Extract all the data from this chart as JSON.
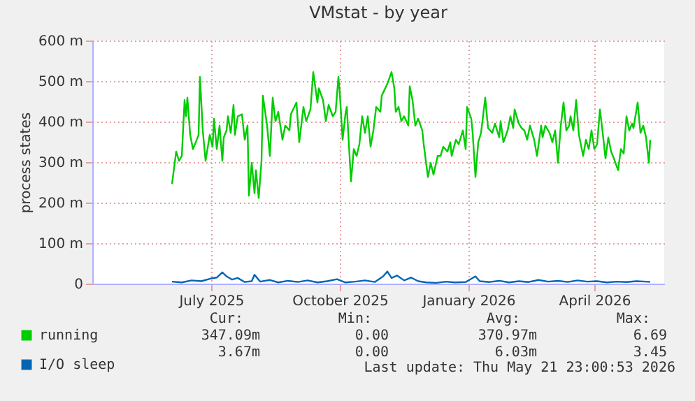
{
  "chart_data": {
    "type": "line",
    "title": "VMstat - by year",
    "ylabel": "process states",
    "xlim": [
      "2025-04-07",
      "2026-05-21"
    ],
    "xticks": [
      {
        "value": "2025-07-01",
        "label": "July 2025"
      },
      {
        "value": "2025-10-01",
        "label": "October 2025"
      },
      {
        "value": "2026-01-01",
        "label": "January 2026"
      },
      {
        "value": "2026-04-01",
        "label": "April 2026"
      }
    ],
    "ylim": [
      0,
      600
    ],
    "yticks": [
      0,
      {
        "value": 100,
        "label": "100 m"
      },
      {
        "value": 200,
        "label": "200 m"
      },
      {
        "value": 300,
        "label": "300 m"
      },
      {
        "value": 400,
        "label": "400 m"
      },
      {
        "value": 500,
        "label": "500 m"
      },
      {
        "value": 600,
        "label": "600 m"
      }
    ],
    "grid": true,
    "legend": "bottom",
    "series": [
      {
        "name": "running",
        "color": "#00cc00",
        "x": [
          "2025-06-03",
          "2025-06-06",
          "2025-06-08",
          "2025-06-10",
          "2025-06-12",
          "2025-06-13",
          "2025-06-14",
          "2025-06-16",
          "2025-06-18",
          "2025-06-20",
          "2025-06-22",
          "2025-06-23",
          "2025-06-25",
          "2025-06-27",
          "2025-06-30",
          "2025-07-02",
          "2025-07-03",
          "2025-07-05",
          "2025-07-07",
          "2025-07-09",
          "2025-07-10",
          "2025-07-12",
          "2025-07-13",
          "2025-07-15",
          "2025-07-17",
          "2025-07-18",
          "2025-07-20",
          "2025-07-23",
          "2025-07-25",
          "2025-07-27",
          "2025-07-28",
          "2025-07-30",
          "2025-08-01",
          "2025-08-02",
          "2025-08-04",
          "2025-08-06",
          "2025-08-07",
          "2025-08-10",
          "2025-08-12",
          "2025-08-14",
          "2025-08-16",
          "2025-08-18",
          "2025-08-21",
          "2025-08-23",
          "2025-08-26",
          "2025-08-27",
          "2025-08-31",
          "2025-09-02",
          "2025-09-05",
          "2025-09-07",
          "2025-09-10",
          "2025-09-12",
          "2025-09-15",
          "2025-09-16",
          "2025-09-19",
          "2025-09-21",
          "2025-09-23",
          "2025-09-26",
          "2025-09-28",
          "2025-09-30",
          "2025-10-01",
          "2025-10-03",
          "2025-10-05",
          "2025-10-06",
          "2025-10-09",
          "2025-10-11",
          "2025-10-13",
          "2025-10-15",
          "2025-10-17",
          "2025-10-19",
          "2025-10-21",
          "2025-10-23",
          "2025-10-25",
          "2025-10-27",
          "2025-10-30",
          "2025-10-31",
          "2025-11-04",
          "2025-11-07",
          "2025-11-09",
          "2025-11-10",
          "2025-11-12",
          "2025-11-14",
          "2025-11-16",
          "2025-11-19",
          "2025-11-20",
          "2025-11-22",
          "2025-11-24",
          "2025-11-26",
          "2025-11-29",
          "2025-11-30",
          "2025-12-03",
          "2025-12-05",
          "2025-12-07",
          "2025-12-10",
          "2025-12-12",
          "2025-12-14",
          "2025-12-17",
          "2025-12-19",
          "2025-12-20",
          "2025-12-23",
          "2025-12-25",
          "2025-12-28",
          "2025-12-30",
          "2025-12-31",
          "2026-01-03",
          "2026-01-04",
          "2026-01-06",
          "2026-01-08",
          "2026-01-10",
          "2026-01-13",
          "2026-01-15",
          "2026-01-18",
          "2026-01-20",
          "2026-01-23",
          "2026-01-24",
          "2026-01-26",
          "2026-01-29",
          "2026-01-31",
          "2026-02-02",
          "2026-02-03",
          "2026-02-06",
          "2026-02-08",
          "2026-02-10",
          "2026-02-12",
          "2026-02-14",
          "2026-02-17",
          "2026-02-19",
          "2026-02-22",
          "2026-02-23",
          "2026-02-25",
          "2026-02-28",
          "2026-03-02",
          "2026-03-04",
          "2026-03-06",
          "2026-03-08",
          "2026-03-10",
          "2026-03-12",
          "2026-03-14",
          "2026-03-15",
          "2026-03-17",
          "2026-03-19",
          "2026-03-21",
          "2026-03-24",
          "2026-03-26",
          "2026-03-28",
          "2026-03-30",
          "2026-04-01",
          "2026-04-03",
          "2026-04-05",
          "2026-04-07",
          "2026-04-09",
          "2026-04-11",
          "2026-04-13",
          "2026-04-15",
          "2026-04-18",
          "2026-04-20",
          "2026-04-22",
          "2026-04-24",
          "2026-04-26",
          "2026-04-28",
          "2026-04-29",
          "2026-05-02",
          "2026-05-04",
          "2026-05-06",
          "2026-05-08",
          "2026-05-10",
          "2026-05-11"
        ],
        "values": [
          246,
          326,
          303,
          315,
          453,
          413,
          459,
          367,
          332,
          349,
          367,
          510,
          378,
          303,
          367,
          338,
          407,
          332,
          390,
          303,
          361,
          378,
          413,
          372,
          441,
          367,
          413,
          418,
          355,
          390,
          217,
          298,
          223,
          280,
          211,
          303,
          464,
          390,
          315,
          459,
          401,
          424,
          355,
          390,
          378,
          418,
          447,
          349,
          436,
          401,
          430,
          522,
          447,
          482,
          453,
          401,
          441,
          413,
          424,
          510,
          470,
          355,
          418,
          436,
          252,
          332,
          315,
          344,
          413,
          372,
          413,
          338,
          378,
          436,
          424,
          464,
          493,
          522,
          482,
          424,
          436,
          401,
          413,
          390,
          487,
          453,
          390,
          407,
          378,
          344,
          263,
          298,
          269,
          315,
          315,
          338,
          326,
          349,
          315,
          355,
          344,
          378,
          332,
          436,
          407,
          372,
          263,
          349,
          372,
          459,
          384,
          372,
          395,
          361,
          401,
          349,
          378,
          413,
          384,
          430,
          395,
          384,
          378,
          355,
          390,
          355,
          315,
          390,
          361,
          390,
          372,
          349,
          378,
          298,
          390,
          447,
          378,
          390,
          413,
          378,
          453,
          367,
          315,
          355,
          332,
          378,
          332,
          344,
          430,
          372,
          309,
          361,
          326,
          309,
          280,
          332,
          321,
          413,
          378,
          395,
          384,
          447,
          372,
          390,
          361,
          298,
          355
        ]
      },
      {
        "name": "I/O sleep",
        "color": "#0066b3",
        "x": [
          "2025-06-03",
          "2025-06-10",
          "2025-06-17",
          "2025-06-24",
          "2025-06-30",
          "2025-07-05",
          "2025-07-09",
          "2025-07-12",
          "2025-07-16",
          "2025-07-20",
          "2025-07-25",
          "2025-07-30",
          "2025-08-01",
          "2025-08-05",
          "2025-08-12",
          "2025-08-18",
          "2025-08-25",
          "2025-09-01",
          "2025-09-08",
          "2025-09-15",
          "2025-09-22",
          "2025-09-29",
          "2025-10-05",
          "2025-10-12",
          "2025-10-19",
          "2025-10-26",
          "2025-11-01",
          "2025-11-04",
          "2025-11-07",
          "2025-11-11",
          "2025-11-16",
          "2025-11-21",
          "2025-11-26",
          "2025-12-02",
          "2025-12-09",
          "2025-12-16",
          "2025-12-22",
          "2025-12-30",
          "2026-01-06",
          "2026-01-09",
          "2026-01-16",
          "2026-01-23",
          "2026-01-30",
          "2026-02-06",
          "2026-02-13",
          "2026-02-20",
          "2026-02-27",
          "2026-03-06",
          "2026-03-13",
          "2026-03-20",
          "2026-03-27",
          "2026-04-03",
          "2026-04-10",
          "2026-04-17",
          "2026-04-24",
          "2026-05-01",
          "2026-05-08",
          "2026-05-11"
        ],
        "values": [
          5,
          3,
          8,
          6,
          12,
          15,
          28,
          18,
          10,
          14,
          4,
          6,
          22,
          5,
          9,
          3,
          7,
          4,
          8,
          3,
          6,
          11,
          3,
          5,
          8,
          4,
          18,
          30,
          14,
          20,
          8,
          15,
          6,
          3,
          2,
          5,
          3,
          4,
          18,
          6,
          4,
          7,
          3,
          6,
          4,
          9,
          5,
          7,
          4,
          8,
          5,
          6,
          3,
          5,
          4,
          6,
          5,
          4
        ]
      }
    ],
    "annotations": [
      "Cur:",
      "Min:",
      "Avg:",
      "Max:",
      "347.09m",
      "0.00",
      "370.97m",
      "6.69",
      "3.67m",
      "0.00",
      "6.03m",
      "3.45",
      "Last update: Thu May 21 23:00:53 2026"
    ]
  }
}
